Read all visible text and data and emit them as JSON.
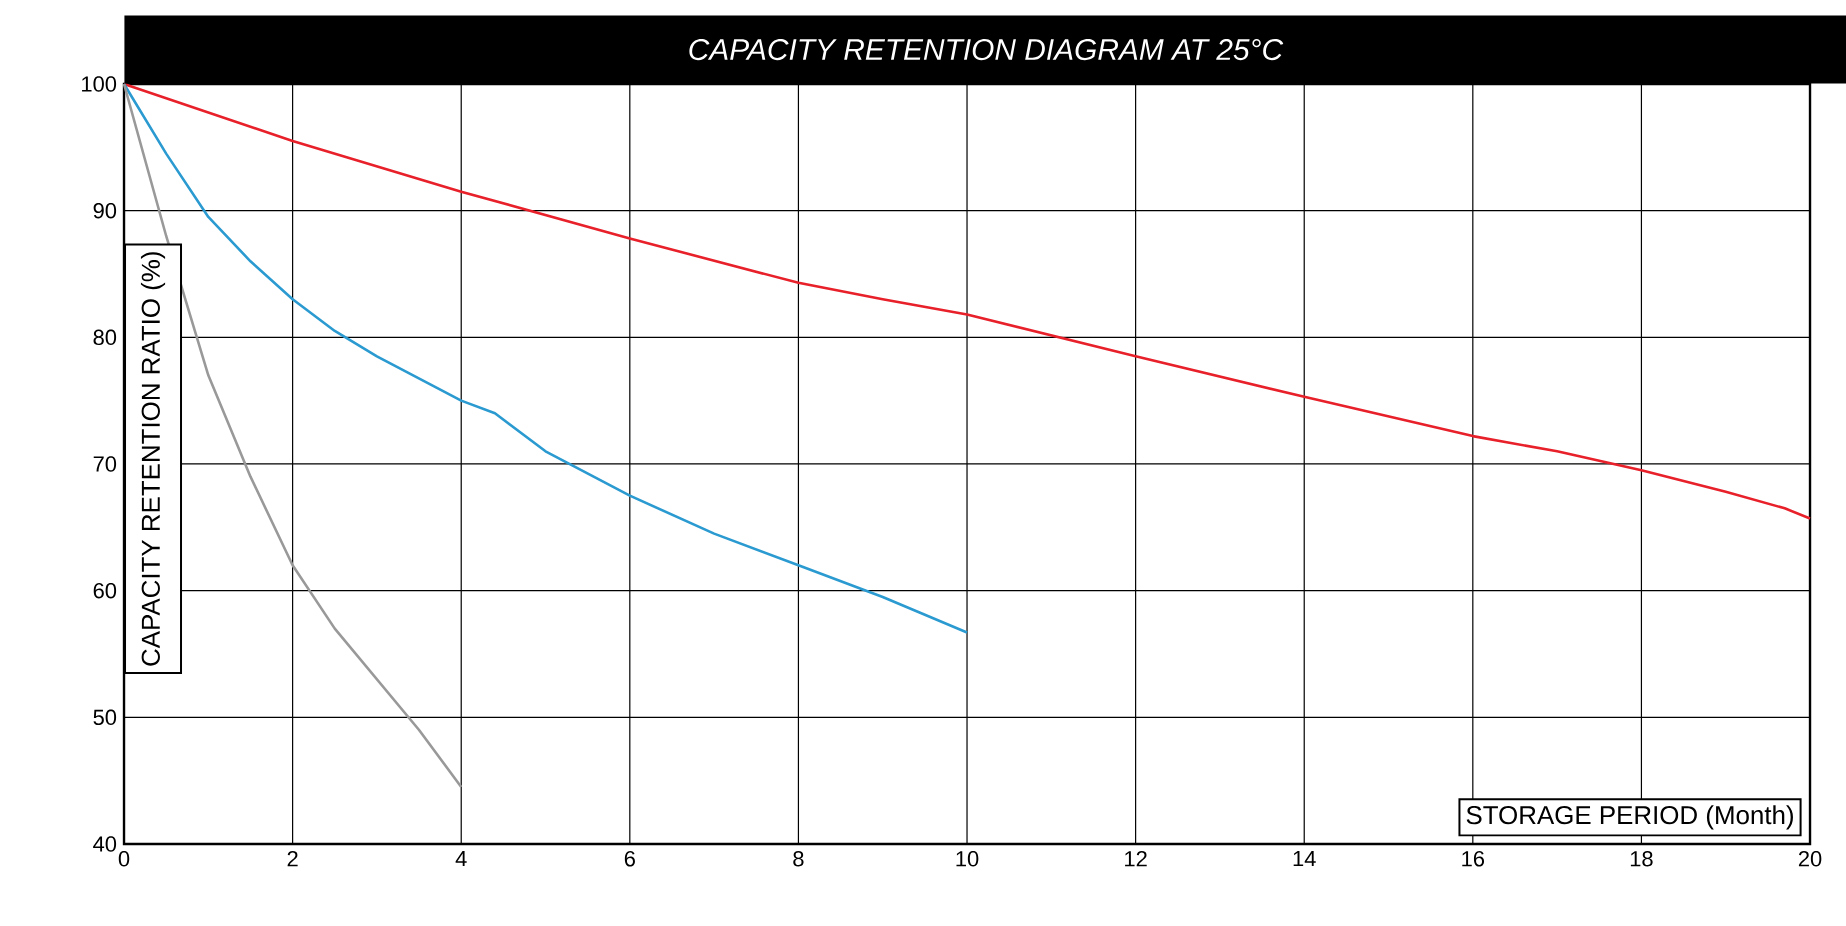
{
  "chart_data": {
    "type": "line",
    "title": "CAPACITY RETENTION DIAGRAM AT 25°C",
    "xlabel": "STORAGE PERIOD (Month)",
    "ylabel": "CAPACITY RETENTION RATIO (%)",
    "xlim": [
      0,
      20
    ],
    "ylim": [
      40,
      100
    ],
    "xticks": [
      0,
      2,
      4,
      6,
      8,
      10,
      12,
      14,
      16,
      18,
      20
    ],
    "yticks": [
      40,
      50,
      60,
      70,
      80,
      90,
      100
    ],
    "grid": true,
    "marker": "none",
    "line_style": "solid",
    "series": [
      {
        "color": "#e8202a",
        "x": [
          0,
          2,
          4,
          6,
          8,
          9,
          10,
          12,
          14,
          16,
          17,
          18,
          19,
          19.7,
          20
        ],
        "values": [
          100,
          95.5,
          91.5,
          87.8,
          84.3,
          83,
          81.8,
          78.5,
          75.3,
          72.2,
          71,
          69.5,
          67.8,
          66.5,
          65.7
        ]
      },
      {
        "color": "#2a9ad0",
        "x": [
          0,
          0.5,
          1,
          1.5,
          2,
          2.5,
          3,
          4,
          4.4,
          5,
          6,
          7,
          8,
          9,
          10
        ],
        "values": [
          100,
          94.5,
          89.5,
          86,
          83,
          80.5,
          78.5,
          75,
          74,
          71,
          67.5,
          64.5,
          62,
          59.5,
          56.7
        ]
      },
      {
        "color": "#999999",
        "x": [
          0,
          0.5,
          1,
          1.5,
          2,
          2.5,
          3,
          3.5,
          4
        ],
        "values": [
          100,
          88,
          77,
          69,
          62,
          57,
          53,
          49,
          44.5
        ]
      }
    ]
  }
}
